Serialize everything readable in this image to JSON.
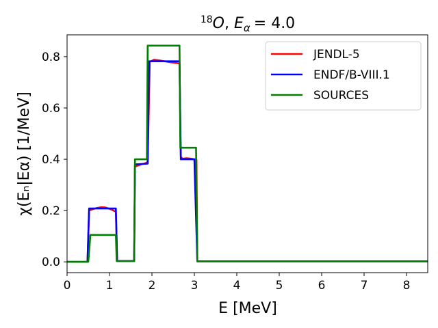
{
  "chart_data": {
    "type": "line",
    "title": "¹⁸O, Eα = 4.0",
    "title_parts": {
      "isotope_mass": "18",
      "element": "O",
      "energy_symbol": "E",
      "energy_sub": "α",
      "energy_value": "= 4.0"
    },
    "xlabel": "E [MeV]",
    "ylabel": "χ(Eₙ|Eα) [1/MeV]",
    "xlim": [
      0,
      8.5
    ],
    "ylim": [
      -0.042,
      0.885
    ],
    "xticks": [
      0,
      1,
      2,
      3,
      4,
      5,
      6,
      7,
      8
    ],
    "xtick_labels": [
      "0",
      "1",
      "2",
      "3",
      "4",
      "5",
      "6",
      "7",
      "8"
    ],
    "yticks": [
      0.0,
      0.2,
      0.4,
      0.6,
      0.8
    ],
    "ytick_labels": [
      "0.0",
      "0.2",
      "0.4",
      "0.6",
      "0.8"
    ],
    "grid": false,
    "legend_position": "top-right",
    "series": [
      {
        "name": "JENDL-5",
        "color": "#ff0000",
        "x": [
          0,
          0.48,
          0.52,
          0.6,
          0.7,
          0.8,
          0.9,
          1.0,
          1.1,
          1.15,
          1.18,
          1.58,
          1.6,
          1.65,
          1.75,
          1.85,
          1.9,
          1.95,
          2.05,
          2.15,
          2.3,
          2.45,
          2.6,
          2.65,
          2.68,
          2.72,
          2.8,
          2.9,
          3.0,
          3.05,
          3.07,
          8.5
        ],
        "y": [
          0,
          0,
          0.2,
          0.205,
          0.21,
          0.213,
          0.212,
          0.207,
          0.2,
          0.195,
          0.003,
          0.003,
          0.37,
          0.375,
          0.38,
          0.385,
          0.39,
          0.78,
          0.788,
          0.786,
          0.782,
          0.778,
          0.775,
          0.772,
          0.41,
          0.402,
          0.404,
          0.403,
          0.4,
          0.398,
          0.002,
          0.002
        ]
      },
      {
        "name": "ENDF/B-VIII.1",
        "color": "#0000ff",
        "x": [
          0,
          0.48,
          0.52,
          1.15,
          1.18,
          1.58,
          1.6,
          1.9,
          1.93,
          2.65,
          2.68,
          3.0,
          3.07,
          8.5
        ],
        "y": [
          0,
          0,
          0.208,
          0.208,
          0.003,
          0.003,
          0.38,
          0.383,
          0.782,
          0.782,
          0.4,
          0.4,
          0.002,
          0.002
        ]
      },
      {
        "name": "SOURCES",
        "color": "#008000",
        "x": [
          0,
          0.5,
          0.55,
          1.15,
          1.17,
          1.58,
          1.6,
          1.88,
          1.9,
          2.65,
          2.67,
          3.04,
          3.07,
          8.5
        ],
        "y": [
          0,
          0,
          0.105,
          0.105,
          0.003,
          0.003,
          0.4,
          0.4,
          0.843,
          0.843,
          0.445,
          0.445,
          0.002,
          0.002
        ]
      }
    ]
  }
}
